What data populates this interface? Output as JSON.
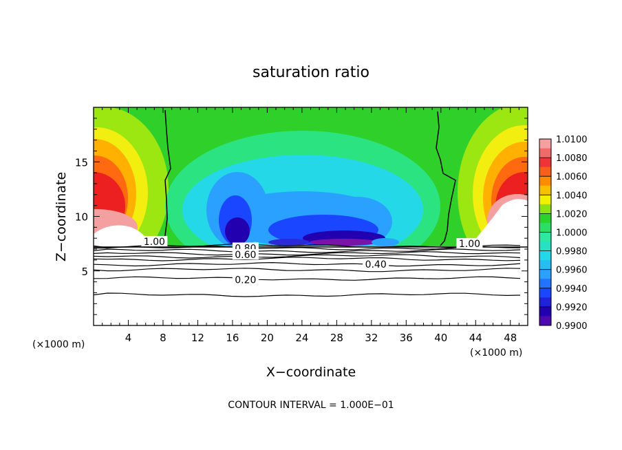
{
  "chart_data": {
    "type": "heatmap",
    "title": "saturation ratio",
    "xlabel": "X−coordinate",
    "ylabel": "Z−coordinate",
    "x_unit_left": "(×1000 m)",
    "x_unit_right": "(×1000 m)",
    "xlim": [
      0,
      50
    ],
    "ylim": [
      0,
      20
    ],
    "x_ticks": [
      4,
      8,
      12,
      16,
      20,
      24,
      28,
      32,
      36,
      40,
      44,
      48
    ],
    "x_tick_labels": [
      "4",
      "8",
      "12",
      "16",
      "20",
      "24",
      "28",
      "32",
      "36",
      "40",
      "44",
      "48"
    ],
    "y_ticks": [
      5,
      10,
      15
    ],
    "y_tick_labels": [
      "5",
      "10",
      "15"
    ],
    "footer": "CONTOUR INTERVAL = 1.000E−01",
    "colorbar": {
      "min": 0.99,
      "max": 1.01,
      "labels": [
        "1.0100",
        "1.0080",
        "1.0060",
        "1.0040",
        "1.0020",
        "1.0000",
        "0.9980",
        "0.9960",
        "0.9940",
        "0.9920",
        "0.9900"
      ],
      "colors": [
        "#f4a0a0",
        "#ee3434",
        "#ff8c00",
        "#f0f000",
        "#2cd22c",
        "#2ce8a0",
        "#24d8e8",
        "#2aa0ff",
        "#1a46ff",
        "#2200b0",
        "#7a14a8"
      ]
    },
    "contour_labels": [
      {
        "text": "1.00",
        "x": 7.0,
        "y": 7.7
      },
      {
        "text": "0.80",
        "x": 17.5,
        "y": 7.1
      },
      {
        "text": "0.60",
        "x": 17.5,
        "y": 6.5
      },
      {
        "text": "0.40",
        "x": 32.5,
        "y": 5.6
      },
      {
        "text": "0.20",
        "x": 17.5,
        "y": 4.2
      },
      {
        "text": "1.00",
        "x": 43.3,
        "y": 7.5
      }
    ],
    "contour_levels_below_cloud": [
      7.3,
      7.1,
      6.85,
      6.6,
      6.35,
      6.1,
      5.6,
      5.1,
      4.3,
      2.8
    ]
  }
}
